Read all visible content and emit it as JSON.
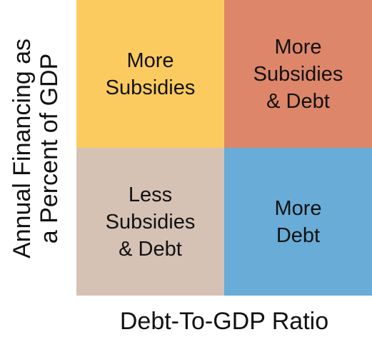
{
  "axes": {
    "x_label": "Debt-To-GDP Ratio",
    "y_label_lines": [
      "Annual Financing as",
      "a Percent of GDP"
    ]
  },
  "quadrants": {
    "top_left": {
      "lines": [
        "More",
        "Subsidies"
      ],
      "color": "#fbcb5f"
    },
    "top_right": {
      "lines": [
        "More",
        "Subsidies",
        "& Debt"
      ],
      "color": "#de8669"
    },
    "bottom_left": {
      "lines": [
        "Less",
        "Subsidies",
        "& Debt"
      ],
      "color": "#d5c2b5"
    },
    "bottom_right": {
      "lines": [
        "More",
        "Debt"
      ],
      "color": "#68acd7"
    }
  }
}
